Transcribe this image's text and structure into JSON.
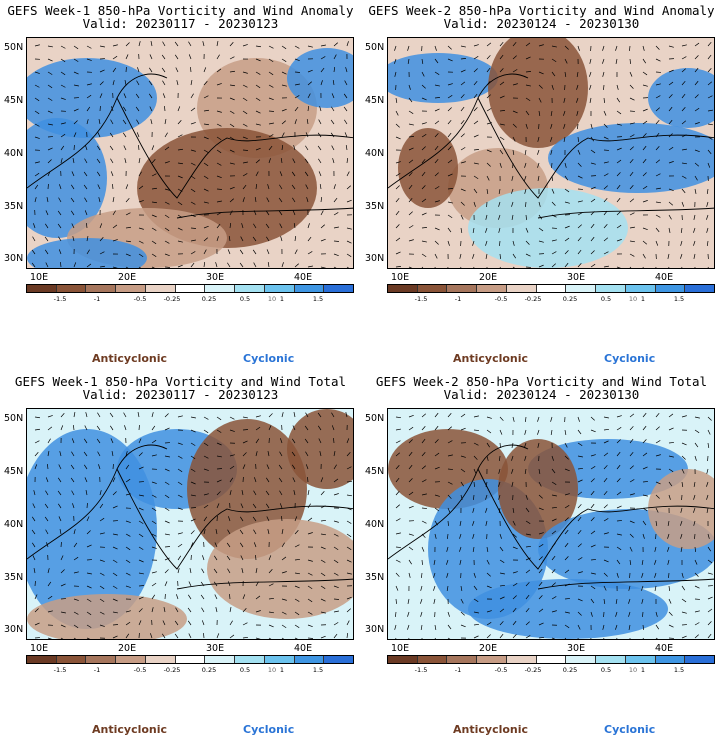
{
  "panels": [
    {
      "title": "GEFS Week-1 850-hPa Vorticity and Wind Anomaly",
      "valid": "Valid: 20230117 - 20230123"
    },
    {
      "title": "GEFS Week-2 850-hPa Vorticity and Wind Anomaly",
      "valid": "Valid: 20230124 - 20230130"
    },
    {
      "title": "GEFS Week-1 850-hPa Vorticity and Wind Total",
      "valid": "Valid: 20230117 - 20230123"
    },
    {
      "title": "GEFS Week-2 850-hPa Vorticity and Wind Total",
      "valid": "Valid: 20230124 - 20230130"
    }
  ],
  "y_axis": [
    "50N",
    "45N",
    "40N",
    "35N",
    "30N"
  ],
  "x_axis": [
    "10E",
    "20E",
    "30E",
    "40E"
  ],
  "colorbar": {
    "labels": [
      "-1.5",
      "-1",
      "-0.5",
      "-0.25",
      "0.25",
      "0.5",
      "1",
      "1.5"
    ],
    "marker": "10",
    "colors": [
      "#6b3a24",
      "#8a5438",
      "#a6765d",
      "#c79d86",
      "#e9d3c6",
      "#ffffff",
      "#d9f3f8",
      "#a4e1f1",
      "#6cc3ee",
      "#3f96e3",
      "#2a6fd8"
    ]
  },
  "legend": {
    "anticyclonic": "Anticyclonic",
    "cyclonic": "Cyclonic"
  }
}
